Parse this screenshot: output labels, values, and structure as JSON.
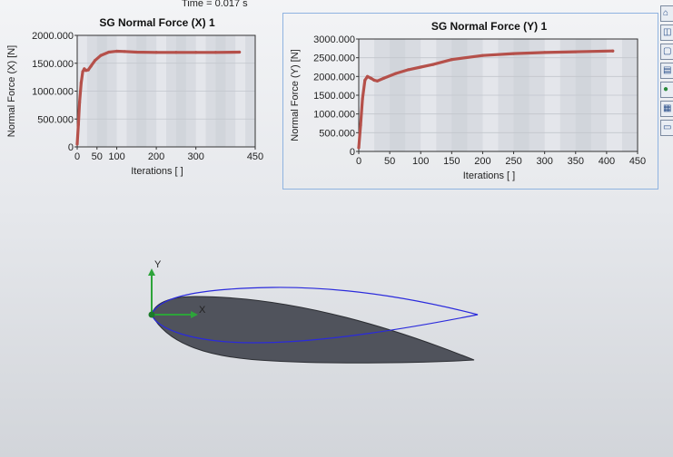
{
  "header": {
    "time_label": "Time = 0.017 s"
  },
  "charts": [
    {
      "title": "SG Normal Force (X) 1",
      "xlabel": "Iterations [ ]",
      "ylabel": "Normal Force (X) [N]",
      "xticks": [
        "0",
        "50",
        "100",
        "200",
        "300",
        "450"
      ],
      "yticks": [
        "0",
        "500.000",
        "1000.000",
        "1500.000",
        "2000.000"
      ]
    },
    {
      "title": "SG Normal Force (Y) 1",
      "xlabel": "Iterations [ ]",
      "ylabel": "Normal Force (Y) [N]",
      "xticks": [
        "0",
        "50",
        "100",
        "150",
        "200",
        "250",
        "300",
        "350",
        "400",
        "450"
      ],
      "yticks": [
        "0",
        "500.000",
        "1000.000",
        "1500.000",
        "2000.000",
        "2500.000",
        "3000.000"
      ]
    }
  ],
  "chart_data": [
    {
      "type": "line",
      "title": "SG Normal Force (X) 1",
      "xlabel": "Iterations [ ]",
      "ylabel": "Normal Force (X) [N]",
      "xlim": [
        0,
        450
      ],
      "ylim": [
        0,
        2000
      ],
      "series": [
        {
          "color": "#b5504a",
          "x": [
            0,
            3,
            6,
            10,
            14,
            18,
            22,
            28,
            35,
            45,
            60,
            80,
            100,
            120,
            150,
            200,
            250,
            300,
            350,
            410
          ],
          "y": [
            50,
            400,
            800,
            1150,
            1350,
            1400,
            1370,
            1380,
            1450,
            1550,
            1640,
            1700,
            1715,
            1710,
            1700,
            1695,
            1695,
            1695,
            1695,
            1700
          ]
        }
      ]
    },
    {
      "type": "line",
      "title": "SG Normal Force (Y) 1",
      "xlabel": "Iterations [ ]",
      "ylabel": "Normal Force (Y) [N]",
      "xlim": [
        0,
        450
      ],
      "ylim": [
        0,
        3000
      ],
      "series": [
        {
          "color": "#b5504a",
          "x": [
            0,
            3,
            6,
            10,
            14,
            20,
            25,
            30,
            40,
            60,
            80,
            100,
            120,
            150,
            200,
            250,
            300,
            350,
            410
          ],
          "y": [
            100,
            700,
            1400,
            1900,
            2000,
            1950,
            1900,
            1880,
            1950,
            2080,
            2180,
            2250,
            2320,
            2450,
            2560,
            2610,
            2640,
            2660,
            2680
          ]
        }
      ]
    }
  ],
  "triad": {
    "x_label": "X",
    "y_label": "Y"
  },
  "toolbar": {
    "icons": [
      "home-icon",
      "cube-icon",
      "box-icon",
      "page-icon",
      "globe-icon",
      "table-icon",
      "chat-icon"
    ]
  },
  "colors": {
    "series": "#b5504a",
    "airfoil_fill": "#50535c",
    "outline": "#2a2adc",
    "triad_x": "#2da43a",
    "triad_y": "#2da43a"
  }
}
